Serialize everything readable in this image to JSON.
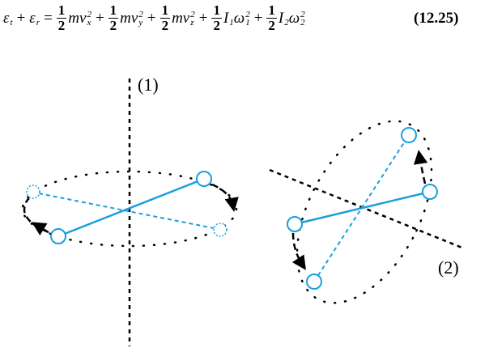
{
  "equation": {
    "lhs": [
      {
        "base": "ε",
        "sub": "t"
      },
      {
        "base": "ε",
        "sub": "r"
      }
    ],
    "plus": "+",
    "equals": "=",
    "terms": [
      {
        "num": "1",
        "den": "2",
        "factors": [
          {
            "base": "m"
          },
          {
            "base": "v",
            "sub": "x",
            "sup": "2"
          }
        ]
      },
      {
        "num": "1",
        "den": "2",
        "factors": [
          {
            "base": "m"
          },
          {
            "base": "v",
            "sub": "y",
            "sup": "2"
          }
        ]
      },
      {
        "num": "1",
        "den": "2",
        "factors": [
          {
            "base": "m"
          },
          {
            "base": "v",
            "sub": "z",
            "sup": "2"
          }
        ]
      },
      {
        "num": "1",
        "den": "2",
        "factors": [
          {
            "base": "I",
            "sub": "1"
          },
          {
            "base": "ω",
            "sub": "1",
            "sup": "2"
          }
        ]
      },
      {
        "num": "1",
        "den": "2",
        "factors": [
          {
            "base": "I",
            "sub": "2"
          },
          {
            "base": "ω",
            "sub": "2",
            "sup": "2"
          }
        ]
      }
    ],
    "number": "(12.25)"
  },
  "figure": {
    "axis_labels": [
      "(1)",
      "(2)"
    ]
  }
}
